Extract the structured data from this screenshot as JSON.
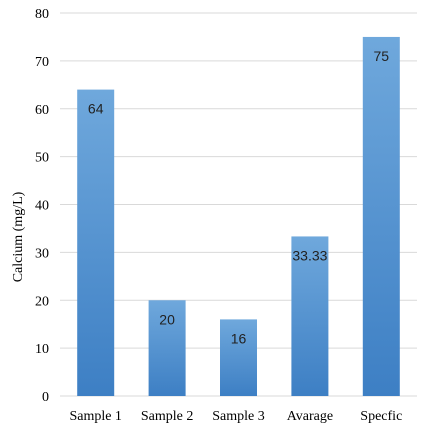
{
  "chart_data": {
    "type": "bar",
    "categories": [
      "Sample 1",
      "Sample 2",
      "Sample 3",
      "Avarage",
      "Specfic"
    ],
    "values": [
      64,
      20,
      16,
      33.33,
      75
    ],
    "data_labels": [
      "64",
      "20",
      "16",
      "33.33",
      "75"
    ],
    "title": "",
    "xlabel": "",
    "ylabel": "Calcium (mg/L)",
    "ylim": [
      0,
      80
    ],
    "yticks": [
      "0",
      "10",
      "20",
      "30",
      "40",
      "50",
      "60",
      "70",
      "80"
    ],
    "grid": true,
    "bar_color_top": "#6fa8dc",
    "bar_color_bottom": "#3d7fc4"
  }
}
